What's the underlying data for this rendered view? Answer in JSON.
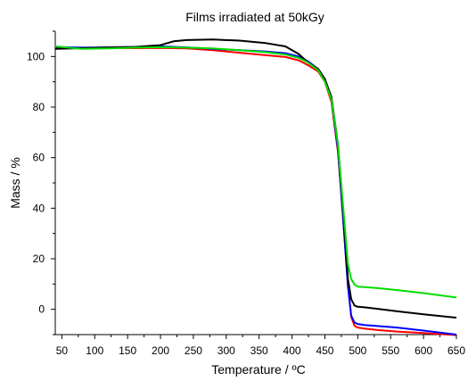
{
  "chart_data": {
    "type": "line",
    "title": "Films irradiated at 50kGy",
    "xlabel": "Temperature / ºC",
    "ylabel": "Mass / %",
    "xlim": [
      40,
      650
    ],
    "ylim": [
      -10,
      110
    ],
    "xticks": [
      50,
      100,
      150,
      200,
      250,
      300,
      350,
      400,
      450,
      500,
      550,
      600,
      650
    ],
    "yticks": [
      0,
      20,
      40,
      60,
      80,
      100
    ],
    "grid": false,
    "series": [
      {
        "color": "#ff0000",
        "x": [
          40,
          80,
          120,
          160,
          200,
          240,
          280,
          320,
          360,
          390,
          410,
          425,
          440,
          450,
          460,
          470,
          478,
          485,
          490,
          495,
          500,
          510,
          530,
          560,
          600,
          650
        ],
        "y": [
          103.5,
          103.2,
          103.4,
          103.3,
          103.4,
          103.2,
          102.5,
          101.5,
          100.5,
          99.8,
          98.5,
          96.5,
          94,
          90,
          82,
          62,
          35,
          10,
          -3,
          -6.5,
          -7.2,
          -7.6,
          -8.2,
          -8.8,
          -9.4,
          -10.2
        ]
      },
      {
        "color": "#0000ff",
        "x": [
          40,
          80,
          120,
          160,
          200,
          240,
          280,
          320,
          360,
          390,
          410,
          425,
          440,
          450,
          460,
          470,
          478,
          485,
          490,
          495,
          500,
          510,
          530,
          560,
          600,
          650
        ],
        "y": [
          103.8,
          103.5,
          103.6,
          103.8,
          104.0,
          103.6,
          103.0,
          102.5,
          102.0,
          101.3,
          100.0,
          98.0,
          95.0,
          91,
          83,
          63,
          35,
          9,
          -2.5,
          -5.2,
          -5.8,
          -6.2,
          -6.6,
          -7.2,
          -8.4,
          -10.0
        ]
      },
      {
        "color": "#000000",
        "x": [
          40,
          80,
          120,
          160,
          200,
          220,
          240,
          280,
          320,
          360,
          390,
          410,
          425,
          440,
          450,
          460,
          470,
          478,
          485,
          490,
          495,
          500,
          510,
          530,
          560,
          600,
          650
        ],
        "y": [
          103.0,
          103.3,
          103.6,
          103.8,
          104.5,
          106.0,
          106.5,
          106.7,
          106.3,
          105.3,
          104.0,
          101.0,
          97.5,
          95.0,
          91,
          84,
          65,
          38,
          12,
          4,
          1.5,
          1.0,
          0.8,
          0.2,
          -0.8,
          -2.0,
          -3.3
        ]
      },
      {
        "color": "#00dd00",
        "x": [
          40,
          80,
          120,
          160,
          200,
          240,
          280,
          320,
          360,
          390,
          410,
          425,
          440,
          450,
          460,
          470,
          478,
          485,
          490,
          495,
          500,
          510,
          530,
          560,
          600,
          650
        ],
        "y": [
          104.0,
          103.0,
          103.2,
          103.5,
          103.7,
          103.5,
          103.2,
          102.5,
          101.7,
          100.8,
          99.5,
          97.5,
          94.5,
          90,
          83,
          65,
          40,
          18,
          12,
          9.8,
          9.0,
          8.8,
          8.4,
          7.6,
          6.4,
          4.7
        ]
      }
    ]
  }
}
